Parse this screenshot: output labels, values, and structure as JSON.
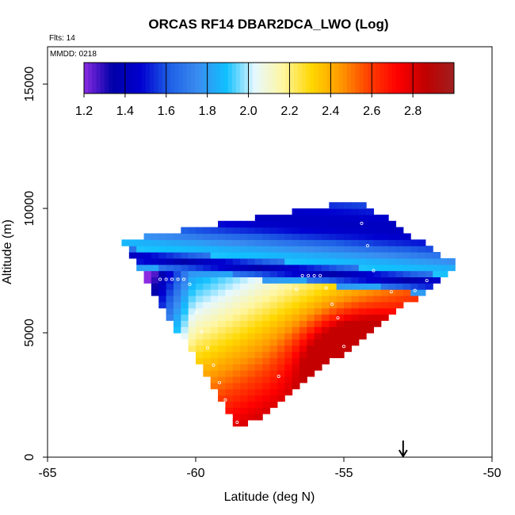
{
  "chart_data": {
    "type": "heatmap",
    "title": "ORCAS RF14 DBAR2DCA_LWO (Log)",
    "subtitle_flights": "Flts: 14",
    "subtitle_date": "MMDD: 0218",
    "xlabel": "Latitude (deg N)",
    "ylabel": "Altitude (m)",
    "xlim": [
      -65,
      -50
    ],
    "ylim": [
      0,
      16500
    ],
    "x_ticks": [
      -65,
      -60,
      -55,
      -50
    ],
    "x_tick_labels": [
      "-65",
      "-60",
      "-55",
      "-50"
    ],
    "y_ticks": [
      0,
      5000,
      10000,
      15000
    ],
    "y_tick_labels": [
      "0",
      "5000",
      "10000",
      "15000"
    ],
    "colorbar": {
      "min": 1.2,
      "max": 3.0,
      "ticks": [
        1.2,
        1.4,
        1.6,
        1.8,
        2.0,
        2.2,
        2.4,
        2.6,
        2.8
      ],
      "tick_labels": [
        "1.2",
        "1.4",
        "1.6",
        "1.8",
        "2.0",
        "2.2",
        "2.4",
        "2.6",
        "2.8"
      ],
      "colors": [
        "#8a2be2",
        "#0000a8",
        "#0000d0",
        "#1e5fe6",
        "#3a8cf0",
        "#10c0ff",
        "#e6f8ff",
        "#fff6a0",
        "#ffd700",
        "#ff9a00",
        "#ff4000",
        "#ff0000",
        "#c00000",
        "#a02020"
      ]
    },
    "grid": {
      "lat_min": -63,
      "lat_step": 0.25,
      "alt_min": 1000,
      "alt_step": 250,
      "cols": 48,
      "rows": 37
    },
    "triangle": {
      "left_lat": -62.6,
      "left_alt": 8600,
      "right_lat": -51.3,
      "right_alt": 7600,
      "bottom_lat": -58.6,
      "bottom_alt": 1000,
      "top_lat": -54.6,
      "top_alt": 10200
    },
    "field": {
      "band_base": 7000,
      "band_slope": -100,
      "low_band_center_offset": 200,
      "low_band_value": 1.35,
      "high_core_lat": -54.6,
      "high_core_alt": 3800,
      "high_core_value": 2.85
    },
    "flight_track_lat": [
      -61.2,
      -61.0,
      -60.8,
      -60.6,
      -60.4,
      -60.2,
      -60.0,
      -59.8,
      -59.6,
      -59.4,
      -59.2,
      -59.0,
      -58.8,
      -58.6,
      -57.2,
      -56.6,
      -56.4,
      -56.2,
      -56.0,
      -55.8,
      -55.6,
      -55.4,
      -55.2,
      -55.0,
      -54.8,
      -54.6,
      -54.4,
      -54.2,
      -54.0,
      -53.4,
      -52.6,
      -52.2
    ],
    "flight_track_alt": [
      7150,
      7150,
      7150,
      7150,
      7150,
      6950,
      5800,
      5050,
      4400,
      3700,
      3000,
      2300,
      1600,
      1400,
      3250,
      6750,
      7300,
      7300,
      7300,
      7300,
      6800,
      6150,
      5600,
      4450,
      3900,
      3450,
      9400,
      8500,
      7500,
      6650,
      6700,
      7100
    ],
    "arrow_lat": -53.0
  }
}
